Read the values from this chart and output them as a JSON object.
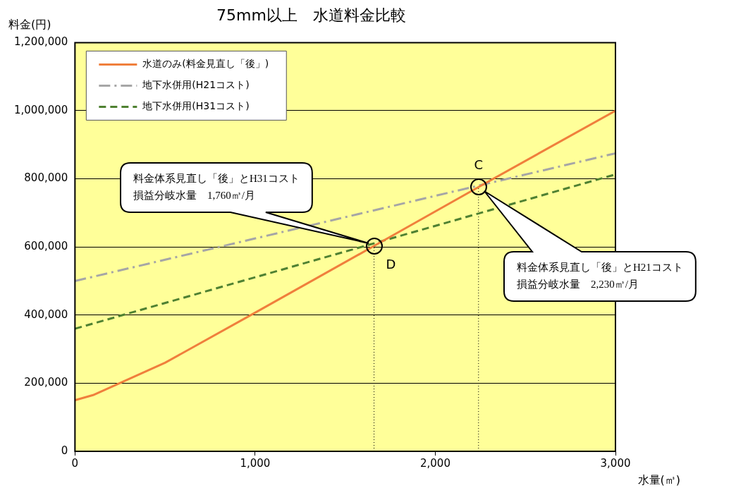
{
  "chart_data": {
    "type": "line",
    "title": "75mm以上　水道料金比較",
    "xlabel": "水量(㎥)",
    "ylabel": "料金(円)",
    "xlim": [
      0,
      3000
    ],
    "xticks": [
      0,
      {
        "value": 1000,
        "label": "1,000"
      },
      {
        "value": 2000,
        "label": "2,000"
      },
      {
        "value": 3000,
        "label": "3,000"
      }
    ],
    "ylim": [
      0,
      1200000
    ],
    "yticks": [
      0,
      {
        "value": 200000,
        "label": "200,000"
      },
      {
        "value": 400000,
        "label": "400,000"
      },
      {
        "value": 600000,
        "label": "600,000"
      },
      {
        "value": 800000,
        "label": "800,000"
      },
      {
        "value": 1000000,
        "label": "1,000,000"
      },
      {
        "value": 1200000,
        "label": "1,200,000"
      }
    ],
    "grid": "y",
    "legend": "top left",
    "marker": "none",
    "series": [
      {
        "name": "水道のみ(料金見直し「後」)",
        "color": "#f07f3c",
        "line_style": "solid",
        "x": [
          0,
          100,
          500,
          1000,
          1660,
          2240,
          3000
        ],
        "values": [
          150000,
          165000,
          260000,
          407000,
          603000,
          776000,
          1000000
        ]
      },
      {
        "name": "地下水併用(H21コスト)",
        "color": "#a6a6a6",
        "line_style": "dashdot",
        "x": [
          0,
          3000
        ],
        "values": [
          500000,
          875000
        ]
      },
      {
        "name": "地下水併用(H31コスト)",
        "color": "#4f8132",
        "line_style": "dashed",
        "x": [
          0,
          3000
        ],
        "values": [
          360000,
          813000
        ]
      }
    ],
    "ref_lines": [
      {
        "axis": "x",
        "value": 1660,
        "line_style": "dotted",
        "color": "#000000"
      },
      {
        "axis": "x",
        "value": 2240,
        "line_style": "dotted",
        "color": "#000000"
      }
    ],
    "annotations": [
      "料金体系見直し「後」とH31コスト損益分岐水量　1,760㎥/月",
      "料金体系見直し「後」とH21コスト損益分岐水量　2,230㎥/月",
      {
        "text": "D",
        "x": 1660,
        "y": 603000
      },
      {
        "text": "C",
        "x": 2240,
        "y": 776000
      }
    ]
  }
}
